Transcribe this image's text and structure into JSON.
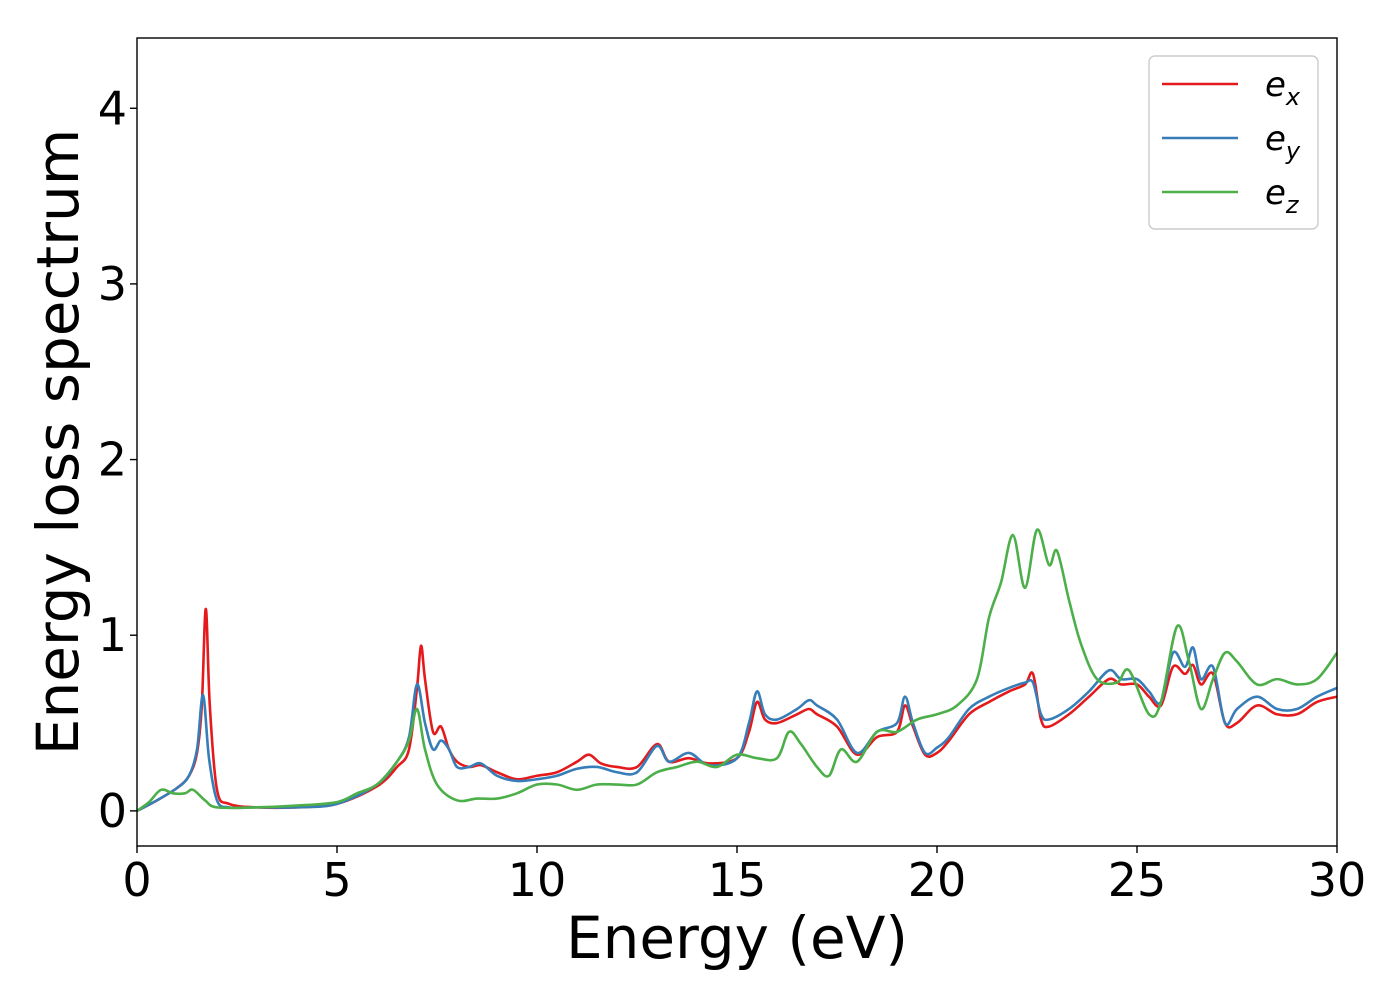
{
  "chart_data": {
    "type": "line",
    "title": "",
    "xlabel": "Energy (eV)",
    "ylabel": "Energy loss spectrum",
    "xlim": [
      0,
      30
    ],
    "ylim": [
      -0.2,
      4.4
    ],
    "xticks": [
      0,
      5,
      10,
      15,
      20,
      25,
      30
    ],
    "yticks": [
      0,
      1,
      2,
      3,
      4
    ],
    "grid": false,
    "legend_position": "top-right",
    "series": [
      {
        "name": "e_x",
        "legend_base": "e",
        "legend_sub": "x",
        "color": "#e41a1c",
        "points": [
          [
            0,
            0
          ],
          [
            0.5,
            0.06
          ],
          [
            1.0,
            0.13
          ],
          [
            1.3,
            0.2
          ],
          [
            1.5,
            0.33
          ],
          [
            1.62,
            0.6
          ],
          [
            1.72,
            1.15
          ],
          [
            1.82,
            0.6
          ],
          [
            2.0,
            0.12
          ],
          [
            2.3,
            0.04
          ],
          [
            3.0,
            0.02
          ],
          [
            4.0,
            0.02
          ],
          [
            5.0,
            0.04
          ],
          [
            6.0,
            0.14
          ],
          [
            6.5,
            0.25
          ],
          [
            6.8,
            0.35
          ],
          [
            7.0,
            0.7
          ],
          [
            7.1,
            0.94
          ],
          [
            7.2,
            0.75
          ],
          [
            7.4,
            0.45
          ],
          [
            7.6,
            0.48
          ],
          [
            7.8,
            0.35
          ],
          [
            8.0,
            0.28
          ],
          [
            8.3,
            0.25
          ],
          [
            8.6,
            0.26
          ],
          [
            9.0,
            0.22
          ],
          [
            9.5,
            0.18
          ],
          [
            10.0,
            0.2
          ],
          [
            10.5,
            0.22
          ],
          [
            11.0,
            0.28
          ],
          [
            11.3,
            0.32
          ],
          [
            11.6,
            0.27
          ],
          [
            12.0,
            0.25
          ],
          [
            12.5,
            0.25
          ],
          [
            13.0,
            0.38
          ],
          [
            13.3,
            0.28
          ],
          [
            13.8,
            0.3
          ],
          [
            14.3,
            0.27
          ],
          [
            15.0,
            0.3
          ],
          [
            15.3,
            0.45
          ],
          [
            15.5,
            0.62
          ],
          [
            15.7,
            0.52
          ],
          [
            16.0,
            0.5
          ],
          [
            16.5,
            0.55
          ],
          [
            16.8,
            0.58
          ],
          [
            17.0,
            0.55
          ],
          [
            17.5,
            0.48
          ],
          [
            18.0,
            0.32
          ],
          [
            18.5,
            0.42
          ],
          [
            19.0,
            0.45
          ],
          [
            19.2,
            0.6
          ],
          [
            19.4,
            0.48
          ],
          [
            19.7,
            0.32
          ],
          [
            20.0,
            0.33
          ],
          [
            20.3,
            0.4
          ],
          [
            20.8,
            0.55
          ],
          [
            21.3,
            0.62
          ],
          [
            21.8,
            0.68
          ],
          [
            22.2,
            0.72
          ],
          [
            22.4,
            0.78
          ],
          [
            22.6,
            0.52
          ],
          [
            22.8,
            0.48
          ],
          [
            23.3,
            0.55
          ],
          [
            23.8,
            0.65
          ],
          [
            24.3,
            0.75
          ],
          [
            24.6,
            0.72
          ],
          [
            25.0,
            0.72
          ],
          [
            25.3,
            0.65
          ],
          [
            25.6,
            0.6
          ],
          [
            25.9,
            0.82
          ],
          [
            26.2,
            0.78
          ],
          [
            26.4,
            0.83
          ],
          [
            26.6,
            0.72
          ],
          [
            26.9,
            0.78
          ],
          [
            27.2,
            0.5
          ],
          [
            27.5,
            0.5
          ],
          [
            28.0,
            0.6
          ],
          [
            28.5,
            0.55
          ],
          [
            29.0,
            0.55
          ],
          [
            29.5,
            0.62
          ],
          [
            30.0,
            0.65
          ]
        ]
      },
      {
        "name": "e_y",
        "legend_base": "e",
        "legend_sub": "y",
        "color": "#377eb8",
        "points": [
          [
            0,
            0
          ],
          [
            0.5,
            0.06
          ],
          [
            1.0,
            0.13
          ],
          [
            1.3,
            0.2
          ],
          [
            1.5,
            0.35
          ],
          [
            1.65,
            0.66
          ],
          [
            1.8,
            0.3
          ],
          [
            2.0,
            0.06
          ],
          [
            2.3,
            0.02
          ],
          [
            3.0,
            0.02
          ],
          [
            4.0,
            0.02
          ],
          [
            5.0,
            0.04
          ],
          [
            6.0,
            0.15
          ],
          [
            6.5,
            0.28
          ],
          [
            6.8,
            0.42
          ],
          [
            7.0,
            0.72
          ],
          [
            7.2,
            0.5
          ],
          [
            7.4,
            0.35
          ],
          [
            7.6,
            0.4
          ],
          [
            7.8,
            0.35
          ],
          [
            8.0,
            0.25
          ],
          [
            8.3,
            0.25
          ],
          [
            8.6,
            0.27
          ],
          [
            9.0,
            0.2
          ],
          [
            9.5,
            0.17
          ],
          [
            10.0,
            0.18
          ],
          [
            10.5,
            0.2
          ],
          [
            11.0,
            0.24
          ],
          [
            11.5,
            0.25
          ],
          [
            12.0,
            0.22
          ],
          [
            12.5,
            0.22
          ],
          [
            13.0,
            0.37
          ],
          [
            13.3,
            0.28
          ],
          [
            13.8,
            0.33
          ],
          [
            14.3,
            0.26
          ],
          [
            15.0,
            0.3
          ],
          [
            15.3,
            0.5
          ],
          [
            15.5,
            0.68
          ],
          [
            15.7,
            0.55
          ],
          [
            16.0,
            0.52
          ],
          [
            16.5,
            0.58
          ],
          [
            16.8,
            0.63
          ],
          [
            17.0,
            0.6
          ],
          [
            17.5,
            0.52
          ],
          [
            18.0,
            0.33
          ],
          [
            18.5,
            0.45
          ],
          [
            19.0,
            0.5
          ],
          [
            19.2,
            0.65
          ],
          [
            19.4,
            0.5
          ],
          [
            19.7,
            0.33
          ],
          [
            20.0,
            0.36
          ],
          [
            20.3,
            0.42
          ],
          [
            20.8,
            0.58
          ],
          [
            21.3,
            0.65
          ],
          [
            21.8,
            0.7
          ],
          [
            22.2,
            0.73
          ],
          [
            22.4,
            0.73
          ],
          [
            22.6,
            0.55
          ],
          [
            22.8,
            0.52
          ],
          [
            23.3,
            0.58
          ],
          [
            23.8,
            0.68
          ],
          [
            24.3,
            0.8
          ],
          [
            24.6,
            0.75
          ],
          [
            25.0,
            0.75
          ],
          [
            25.3,
            0.68
          ],
          [
            25.6,
            0.62
          ],
          [
            25.9,
            0.9
          ],
          [
            26.2,
            0.82
          ],
          [
            26.4,
            0.93
          ],
          [
            26.6,
            0.75
          ],
          [
            26.9,
            0.82
          ],
          [
            27.2,
            0.5
          ],
          [
            27.5,
            0.58
          ],
          [
            28.0,
            0.65
          ],
          [
            28.5,
            0.58
          ],
          [
            29.0,
            0.58
          ],
          [
            29.5,
            0.65
          ],
          [
            30.0,
            0.7
          ]
        ]
      },
      {
        "name": "e_z",
        "legend_base": "e",
        "legend_sub": "z",
        "color": "#4daf4a",
        "points": [
          [
            0,
            0
          ],
          [
            0.3,
            0.05
          ],
          [
            0.6,
            0.12
          ],
          [
            0.9,
            0.1
          ],
          [
            1.2,
            0.1
          ],
          [
            1.4,
            0.12
          ],
          [
            1.7,
            0.06
          ],
          [
            2.0,
            0.02
          ],
          [
            3.0,
            0.02
          ],
          [
            4.0,
            0.03
          ],
          [
            5.0,
            0.05
          ],
          [
            5.5,
            0.1
          ],
          [
            6.0,
            0.15
          ],
          [
            6.5,
            0.28
          ],
          [
            6.8,
            0.4
          ],
          [
            7.0,
            0.58
          ],
          [
            7.2,
            0.35
          ],
          [
            7.5,
            0.15
          ],
          [
            8.0,
            0.06
          ],
          [
            8.5,
            0.07
          ],
          [
            9.0,
            0.07
          ],
          [
            9.5,
            0.1
          ],
          [
            10.0,
            0.15
          ],
          [
            10.5,
            0.15
          ],
          [
            11.0,
            0.12
          ],
          [
            11.5,
            0.15
          ],
          [
            12.0,
            0.15
          ],
          [
            12.5,
            0.15
          ],
          [
            13.0,
            0.22
          ],
          [
            13.5,
            0.25
          ],
          [
            14.0,
            0.28
          ],
          [
            14.5,
            0.25
          ],
          [
            15.0,
            0.32
          ],
          [
            15.5,
            0.3
          ],
          [
            16.0,
            0.3
          ],
          [
            16.3,
            0.45
          ],
          [
            16.6,
            0.38
          ],
          [
            17.0,
            0.25
          ],
          [
            17.3,
            0.2
          ],
          [
            17.6,
            0.35
          ],
          [
            18.0,
            0.28
          ],
          [
            18.5,
            0.45
          ],
          [
            19.0,
            0.45
          ],
          [
            19.5,
            0.52
          ],
          [
            20.0,
            0.55
          ],
          [
            20.5,
            0.6
          ],
          [
            21.0,
            0.75
          ],
          [
            21.3,
            1.1
          ],
          [
            21.6,
            1.3
          ],
          [
            21.9,
            1.57
          ],
          [
            22.2,
            1.27
          ],
          [
            22.5,
            1.6
          ],
          [
            22.8,
            1.4
          ],
          [
            23.0,
            1.48
          ],
          [
            23.3,
            1.2
          ],
          [
            23.6,
            0.95
          ],
          [
            24.0,
            0.75
          ],
          [
            24.5,
            0.73
          ],
          [
            24.8,
            0.8
          ],
          [
            25.3,
            0.55
          ],
          [
            25.6,
            0.62
          ],
          [
            26.0,
            1.05
          ],
          [
            26.3,
            0.85
          ],
          [
            26.6,
            0.58
          ],
          [
            26.9,
            0.75
          ],
          [
            27.2,
            0.9
          ],
          [
            27.5,
            0.85
          ],
          [
            28.0,
            0.72
          ],
          [
            28.5,
            0.75
          ],
          [
            29.0,
            0.72
          ],
          [
            29.5,
            0.75
          ],
          [
            30.0,
            0.9
          ]
        ]
      }
    ]
  }
}
